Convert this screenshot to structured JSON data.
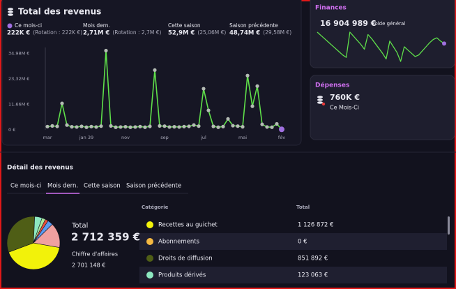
{
  "revenue_panel": {
    "title": "Total des revenus",
    "stats": [
      {
        "label": "Ce mois-ci",
        "value": "222K €",
        "detail": "(Rotation : 222K €)"
      },
      {
        "label": "Mois dern.",
        "value": "2,71M €",
        "detail": "(Rotation : 2,7M €)"
      },
      {
        "label": "Cette saison",
        "value": "52,9M €",
        "detail": "(25,06M €)"
      },
      {
        "label": "Saison précédente",
        "value": "48,74M €",
        "detail": "(29,58M €)"
      }
    ],
    "chart": {
      "type": "line",
      "categories": [
        "mar",
        null,
        null,
        null,
        null,
        null,
        null,
        null,
        "jan 39",
        null,
        null,
        null,
        null,
        null,
        null,
        null,
        "nov",
        null,
        null,
        null,
        null,
        null,
        null,
        null,
        "sep",
        null,
        null,
        null,
        null,
        null,
        null,
        null,
        "jul",
        null,
        null,
        null,
        null,
        null,
        null,
        null,
        "mai",
        null,
        null,
        null,
        null,
        null,
        null,
        null,
        "fév"
      ],
      "values": [
        1500000,
        1800000,
        1600000,
        12100000,
        2200000,
        1400000,
        1300000,
        1600000,
        1200000,
        1500000,
        1300000,
        1700000,
        36200000,
        1800000,
        1200000,
        1300000,
        1400000,
        1200000,
        1300000,
        1500000,
        1200000,
        1600000,
        27300000,
        1800000,
        1700000,
        1300000,
        1400000,
        1300000,
        1500000,
        1600000,
        2200000,
        1700000,
        18800000,
        8900000,
        1600000,
        1200000,
        1500000,
        5000000,
        1900000,
        1700000,
        1400000,
        24800000,
        10800000,
        20000000,
        2500000,
        1300000,
        1200000,
        2710000,
        222000
      ],
      "color": "#5fe04a",
      "point_color": "#b4bcb4",
      "highlight_color": "#a070e0",
      "ylim": [
        0,
        37000000
      ],
      "yticks": [
        {
          "value": 0,
          "label": "0 €"
        },
        {
          "value": 11660000,
          "label": "11,66M €"
        },
        {
          "value": 23320000,
          "label": "23,32M €"
        },
        {
          "value": 34980000,
          "label": "34,98M €"
        }
      ]
    }
  },
  "finances": {
    "title": "Finances",
    "balance": "16 904 989 €",
    "balance_label": "Solde général",
    "chart": {
      "type": "line",
      "values": [
        18900000,
        18500000,
        18100000,
        17700000,
        17300000,
        16900000,
        16500000,
        16100000,
        15800000,
        18900000,
        18400000,
        17900000,
        17400000,
        16800000,
        18600000,
        18100000,
        17500000,
        16900000,
        16300000,
        15600000,
        17800000,
        17100000,
        16400000,
        15300000,
        17100000,
        16700000,
        16300000,
        15900000,
        16100000,
        16600000,
        17100000,
        17600000,
        18000000,
        18200000,
        17800000,
        17500000
      ],
      "color": "#5fe04a",
      "highlight_color": "#a070e0"
    }
  },
  "expenses": {
    "title": "Dépenses",
    "amount": "760K €",
    "period": "Ce Mois-Ci"
  },
  "detail": {
    "title": "Détail des revenus",
    "tabs": [
      "Ce mois-ci",
      "Mois dern.",
      "Cette saison",
      "Saison précédente"
    ],
    "active_tab": 1,
    "total_label": "Total",
    "total": "2 712 359 €",
    "turnover_label": "Chiffre d'affaires",
    "turnover": "2 701 148 €",
    "table_headers": [
      "Catégorie",
      "Total"
    ],
    "chart": {
      "type": "pie",
      "categories": [
        "Recettes au guichet",
        "Abonnements",
        "Droits de diffusion",
        "Produits dérivés",
        null,
        null,
        null,
        null
      ],
      "values": [
        1126872,
        0,
        851892,
        123063,
        60000,
        50000,
        90000,
        410000
      ],
      "value_labels": [
        "1 126 872 €",
        "0 €",
        "851 892 €",
        "123 063 €",
        null,
        null,
        null,
        null
      ],
      "colors": [
        "#f2f20a",
        "#f5b942",
        "#4f5e16",
        "#8de8c0",
        "#a8e8a0",
        "#e8503a",
        "#5b9bf0",
        "#f0a0a0"
      ]
    }
  }
}
